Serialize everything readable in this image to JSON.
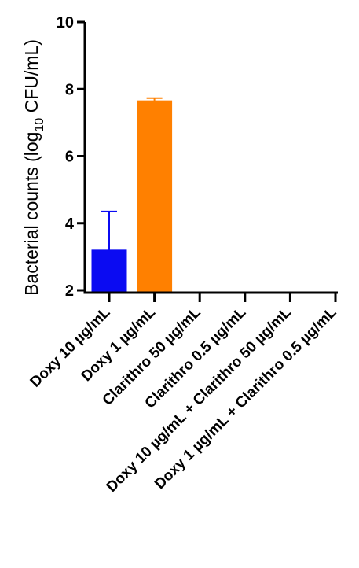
{
  "chart_data": {
    "type": "bar",
    "ylabel_main": "Bacterial counts (log",
    "ylabel_sub": "10",
    "ylabel_end": " CFU/mL)",
    "ylim": [
      2,
      10
    ],
    "yticks": [
      2,
      4,
      6,
      8,
      10
    ],
    "grid": false,
    "categories": [
      "Doxy 10 µg/mL",
      "Doxy 1 µg/mL",
      "Clarithro 50 µg/mL",
      "Clarithro 0.5 µg/mL",
      "Doxy 10 µg/mL + Clarithro 50 µg/mL",
      "Doxy 1 µg/mL + Clarithro 0.5 µg/mL"
    ],
    "values": [
      3.2,
      7.65,
      null,
      null,
      null,
      null
    ],
    "errors": [
      1.15,
      0.08,
      null,
      null,
      null,
      null
    ],
    "colors": [
      "#0b0bf2",
      "#ff8000",
      null,
      null,
      null,
      null
    ]
  }
}
